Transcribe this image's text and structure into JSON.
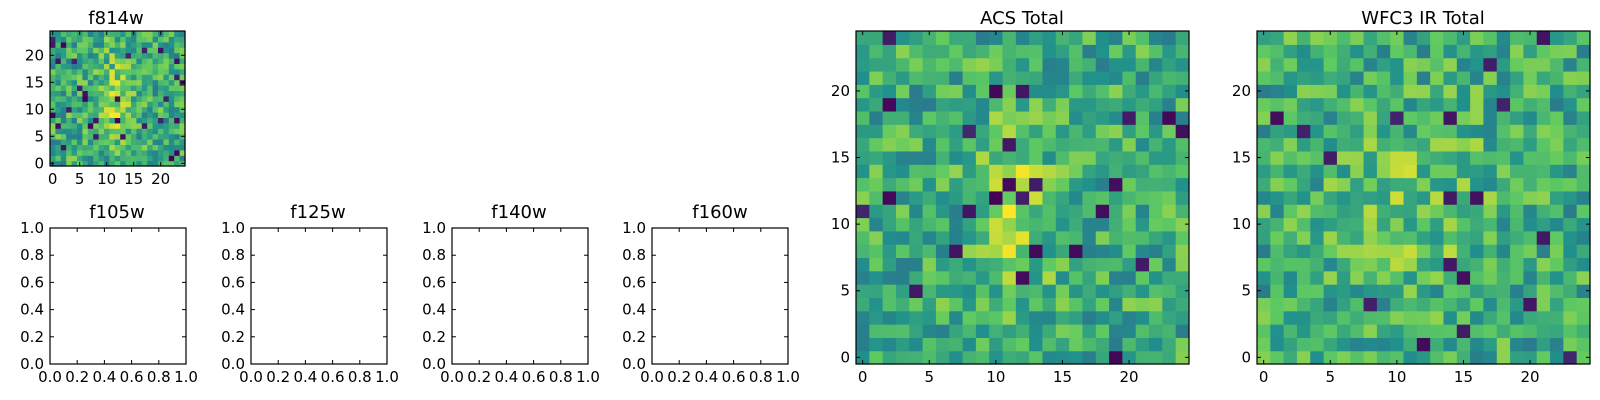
{
  "chart_data": [
    {
      "type": "heatmap",
      "title": "f814w",
      "xticks": [
        "0",
        "5",
        "10",
        "15",
        "20"
      ],
      "yticks": [
        "0",
        "5",
        "10",
        "15",
        "20"
      ],
      "xlim": [
        -0.5,
        24.5
      ],
      "ylim": [
        -0.5,
        24.5
      ],
      "grid_size": 25,
      "colormap": "viridis",
      "values_note": "25x25 noisy intensity image, brighter (yellow) region near center around x=10-14, y=5-18"
    },
    {
      "type": "heatmap",
      "title": "f105w",
      "xticks": [
        "0.0",
        "0.2",
        "0.4",
        "0.6",
        "0.8",
        "1.0"
      ],
      "yticks": [
        "0.0",
        "0.2",
        "0.4",
        "0.6",
        "0.8",
        "1.0"
      ],
      "xlim": [
        0,
        1
      ],
      "ylim": [
        0,
        1
      ],
      "empty": true
    },
    {
      "type": "heatmap",
      "title": "f125w",
      "xticks": [
        "0.0",
        "0.2",
        "0.4",
        "0.6",
        "0.8",
        "1.0"
      ],
      "yticks": [
        "0.0",
        "0.2",
        "0.4",
        "0.6",
        "0.8",
        "1.0"
      ],
      "xlim": [
        0,
        1
      ],
      "ylim": [
        0,
        1
      ],
      "empty": true
    },
    {
      "type": "heatmap",
      "title": "f140w",
      "xticks": [
        "0.0",
        "0.2",
        "0.4",
        "0.6",
        "0.8",
        "1.0"
      ],
      "yticks": [
        "0.0",
        "0.2",
        "0.4",
        "0.6",
        "0.8",
        "1.0"
      ],
      "xlim": [
        0,
        1
      ],
      "ylim": [
        0,
        1
      ],
      "empty": true
    },
    {
      "type": "heatmap",
      "title": "f160w",
      "xticks": [
        "0.0",
        "0.2",
        "0.4",
        "0.6",
        "0.8",
        "1.0"
      ],
      "yticks": [
        "0.0",
        "0.2",
        "0.4",
        "0.6",
        "0.8",
        "1.0"
      ],
      "xlim": [
        0,
        1
      ],
      "ylim": [
        0,
        1
      ],
      "empty": true
    },
    {
      "type": "heatmap",
      "title": "ACS Total",
      "xticks": [
        "0",
        "5",
        "10",
        "15",
        "20"
      ],
      "yticks": [
        "0",
        "5",
        "10",
        "15",
        "20"
      ],
      "xlim": [
        -0.5,
        24.5
      ],
      "ylim": [
        -0.5,
        24.5
      ],
      "grid_size": 25,
      "colormap": "viridis",
      "values_note": "25x25 noisy intensity image, bright yellow column near x=10-13, y=5-17"
    },
    {
      "type": "heatmap",
      "title": "WFC3 IR Total",
      "xticks": [
        "0",
        "5",
        "10",
        "15",
        "20"
      ],
      "yticks": [
        "0",
        "5",
        "10",
        "15",
        "20"
      ],
      "xlim": [
        -0.5,
        24.5
      ],
      "ylim": [
        -0.5,
        24.5
      ],
      "grid_size": 25,
      "colormap": "viridis",
      "values_note": "25x25 noisy intensity image, scattered bright pixels, several dark outliers"
    }
  ],
  "colors": {
    "viridis_dark": "#440154",
    "viridis_blue": "#31688e",
    "viridis_teal": "#21918c",
    "viridis_green": "#35b779",
    "viridis_light": "#90d743",
    "viridis_yellow": "#fde725"
  }
}
